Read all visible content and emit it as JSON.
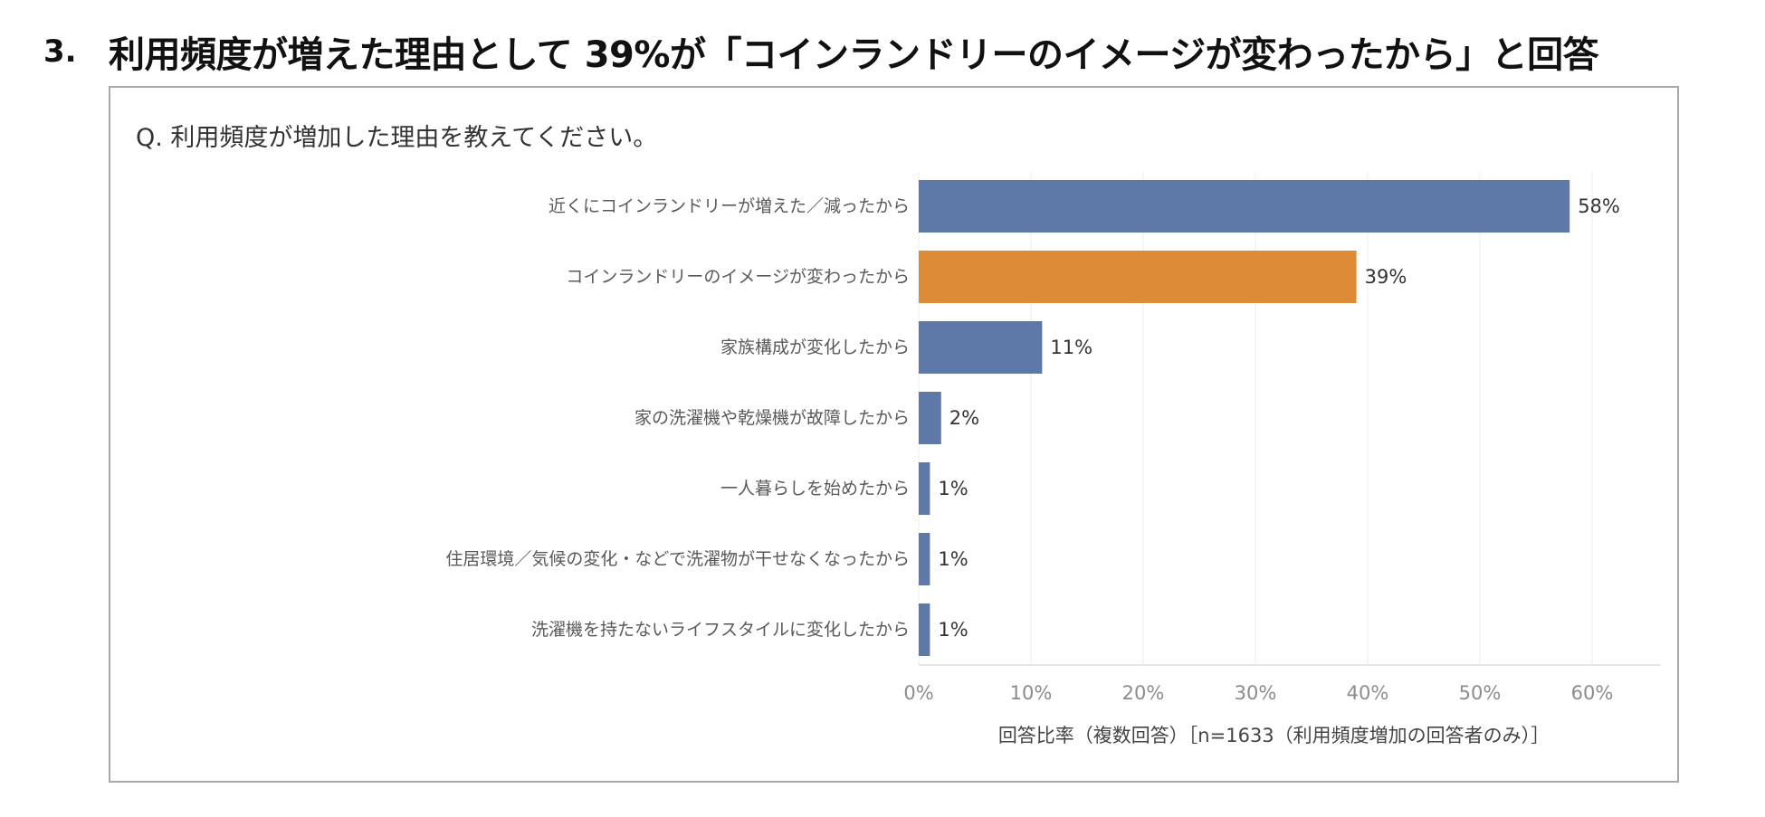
{
  "heading": {
    "number": "3.",
    "text": "利用頻度が増えた理由として 39%が「コインランドリーのイメージが変わったから」と回答"
  },
  "chart_data": {
    "type": "bar",
    "orientation": "horizontal",
    "title": "Q. 利用頻度が増加した理由を教えてください。",
    "xlabel": "回答比率（複数回答）［n=1633（利用頻度増加の回答者のみ）］",
    "ylabel": "",
    "xlim": [
      0,
      65
    ],
    "xticks": [
      0,
      10,
      20,
      30,
      40,
      50,
      60
    ],
    "xtick_labels": [
      "0%",
      "10%",
      "20%",
      "30%",
      "40%",
      "50%",
      "60%"
    ],
    "grid": true,
    "categories": [
      "近くにコインランドリーが増えた／減ったから",
      "コインランドリーのイメージが変わったから",
      "家族構成が変化したから",
      "家の洗濯機や乾燥機が故障したから",
      "一人暮らしを始めたから",
      "住居環境／気候の変化・などで洗濯物が干せなくなったから",
      "洗濯機を持たないライフスタイルに変化したから"
    ],
    "values": [
      58,
      39,
      11,
      2,
      1,
      1,
      1
    ],
    "value_labels": [
      "58%",
      "39%",
      "11%",
      "2%",
      "1%",
      "1%",
      "1%"
    ],
    "highlight_index": 1,
    "colors": {
      "default": "#5e79a8",
      "highlight": "#dd8b36",
      "grid": "#ececec"
    }
  }
}
